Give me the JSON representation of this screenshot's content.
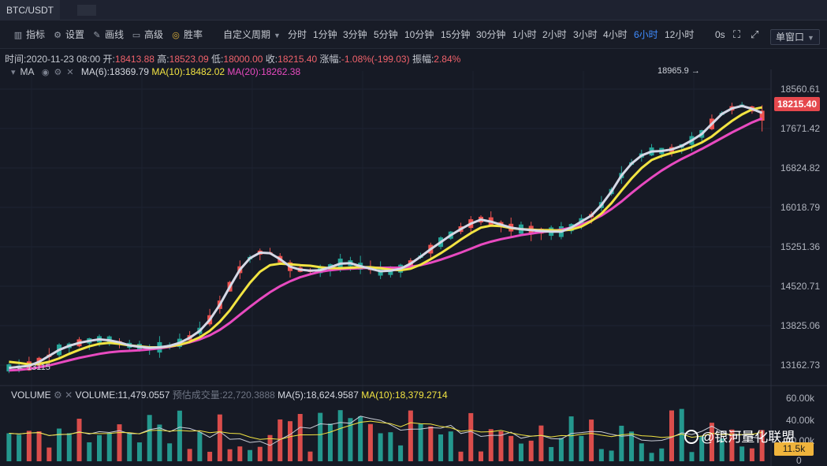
{
  "window": {
    "tab_title": "BTC/USDT"
  },
  "toolbar": {
    "indicator": "指标",
    "settings": "设置",
    "draw": "画线",
    "advanced": "高级",
    "winrate": "胜率",
    "custom_period": "自定义周期",
    "periods": [
      "分时",
      "1分钟",
      "3分钟",
      "5分钟",
      "10分钟",
      "15分钟",
      "30分钟",
      "1小时",
      "2小时",
      "3小时",
      "4小时",
      "6小时",
      "12小时"
    ],
    "active_period": "6小时",
    "countdown": "0s",
    "single_window": "单窗口"
  },
  "info": {
    "time_label": "时间:",
    "time": "2020-11-23 08:00",
    "open_label": "开:",
    "open": "18413.88",
    "high_label": "高:",
    "high": "18523.09",
    "low_label": "低:",
    "low": "18000.00",
    "close_label": "收:",
    "close": "18215.40",
    "change_label": "涨幅:",
    "change": "-1.08%(-199.03)",
    "amp_label": "振幅:",
    "amp": "2.84%"
  },
  "ma": {
    "label": "MA",
    "ma6": "MA(6):18369.79",
    "ma10": "MA(10):18482.02",
    "ma20": "MA(20):18262.38"
  },
  "volume": {
    "label": "VOLUME",
    "vol": "VOLUME:11,479.0557",
    "est": "预估成交量:22,720.3888",
    "ma5": "MA(5):18,624.9587",
    "ma10": "MA(10):18,379.2714"
  },
  "axis": {
    "price_ticks": [
      "18560.61",
      "17671.42",
      "16824.82",
      "16018.79",
      "15251.36",
      "14520.71",
      "13825.06",
      "13162.73"
    ],
    "volume_ticks": [
      "60.00k",
      "40.00k",
      "20.00k",
      "0"
    ],
    "last_price": "18215.40",
    "last_volume": "11.5k"
  },
  "annotations": {
    "high": "18965.9 →",
    "low": "← 13115"
  },
  "watermark": "@银河量化联盟",
  "colors": {
    "up": "#26a69a",
    "down": "#ef5350",
    "ma6": "#d5d8e6",
    "ma10": "#f2e442",
    "ma20": "#e84ac0",
    "active": "#3f8cff"
  },
  "chart_data": {
    "type": "candlestick",
    "symbol": "BTC/USDT",
    "interval": "6小时",
    "ylim": [
      13100,
      19050
    ],
    "last_candle": {
      "time": "2020-11-23 08:00",
      "open": 18413.88,
      "high": 18523.09,
      "low": 18000.0,
      "close": 18215.4
    },
    "series": [
      {
        "name": "MA(6)",
        "values": [
          13280,
          13300,
          13320,
          13400,
          13520,
          13640,
          13720,
          13780,
          13820,
          13850,
          13830,
          13790,
          13730,
          13700,
          13680,
          13690,
          13720,
          13780,
          13880,
          14020,
          14240,
          14540,
          14900,
          15240,
          15470,
          15580,
          15570,
          15450,
          15300,
          15240,
          15220,
          15230,
          15290,
          15360,
          15370,
          15310,
          15260,
          15210,
          15220,
          15260,
          15360,
          15500,
          15650,
          15790,
          15930,
          16050,
          16160,
          16240,
          16200,
          16140,
          16080,
          16050,
          16030,
          16010,
          16000,
          16000,
          16080,
          16200,
          16320,
          16530,
          16800,
          17120,
          17360,
          17520,
          17600,
          17610,
          17640,
          17710,
          17820,
          17950,
          18150,
          18350,
          18460,
          18510,
          18450,
          18370
        ]
      },
      {
        "name": "MA(10)",
        "values": [
          13400,
          13380,
          13350,
          13360,
          13400,
          13470,
          13560,
          13640,
          13710,
          13760,
          13780,
          13760,
          13730,
          13710,
          13690,
          13690,
          13710,
          13740,
          13800,
          13890,
          14020,
          14200,
          14430,
          14710,
          14980,
          15200,
          15330,
          15360,
          15350,
          15330,
          15320,
          15290,
          15270,
          15270,
          15280,
          15290,
          15290,
          15270,
          15240,
          15230,
          15260,
          15340,
          15450,
          15570,
          15700,
          15840,
          15970,
          16080,
          16120,
          16110,
          16070,
          16050,
          16040,
          16030,
          16030,
          16020,
          16040,
          16100,
          16210,
          16360,
          16570,
          16820,
          17060,
          17270,
          17430,
          17510,
          17570,
          17620,
          17690,
          17780,
          17900,
          18060,
          18210,
          18340,
          18440,
          18480
        ]
      },
      {
        "name": "MA(20)",
        "values": [
          13230,
          13240,
          13260,
          13290,
          13330,
          13380,
          13430,
          13480,
          13520,
          13560,
          13590,
          13610,
          13620,
          13630,
          13650,
          13670,
          13700,
          13740,
          13790,
          13850,
          13930,
          14040,
          14180,
          14340,
          14500,
          14650,
          14790,
          14910,
          15010,
          15090,
          15150,
          15200,
          15230,
          15250,
          15260,
          15270,
          15280,
          15280,
          15280,
          15280,
          15300,
          15330,
          15380,
          15440,
          15510,
          15580,
          15660,
          15740,
          15800,
          15850,
          15890,
          15930,
          15960,
          15990,
          16010,
          16040,
          16080,
          16140,
          16220,
          16320,
          16450,
          16600,
          16770,
          16930,
          17080,
          17220,
          17340,
          17450,
          17550,
          17650,
          17760,
          17870,
          17980,
          18080,
          18180,
          18262
        ]
      }
    ],
    "volume_series": {
      "name": "VOLUME",
      "last": 11479.0557,
      "ylim": [
        0,
        60000
      ]
    }
  }
}
